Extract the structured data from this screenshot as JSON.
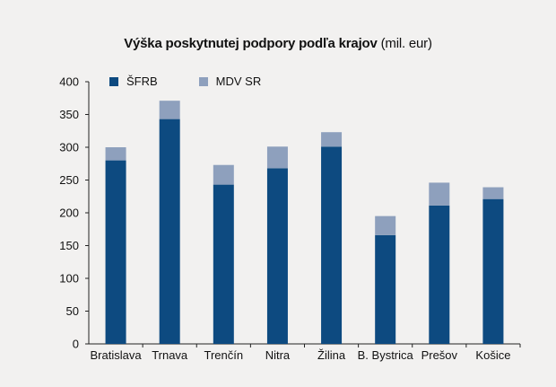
{
  "chart_data": {
    "type": "bar",
    "stacked": true,
    "title": "Výška poskytnutej podpory podľa krajov",
    "title_unit": "(mil. eur)",
    "xlabel": "",
    "ylabel": "",
    "ylim": [
      0,
      400
    ],
    "yticks": [
      "0",
      "50",
      "100",
      "150",
      "200",
      "250",
      "300",
      "350",
      "400"
    ],
    "grid": false,
    "legend_position": "top-left",
    "categories": [
      "Bratislava",
      "Trnava",
      "Trenčín",
      "Nitra",
      "Žilina",
      "B. Bystrica",
      "Prešov",
      "Košice"
    ],
    "series": [
      {
        "name": "ŠFRB",
        "color": "#0d4a80",
        "values": [
          280,
          343,
          243,
          268,
          301,
          166,
          211,
          221
        ]
      },
      {
        "name": "MDV SR",
        "color": "#8ea0bd",
        "values": [
          20,
          28,
          30,
          33,
          22,
          29,
          35,
          18
        ]
      }
    ]
  }
}
